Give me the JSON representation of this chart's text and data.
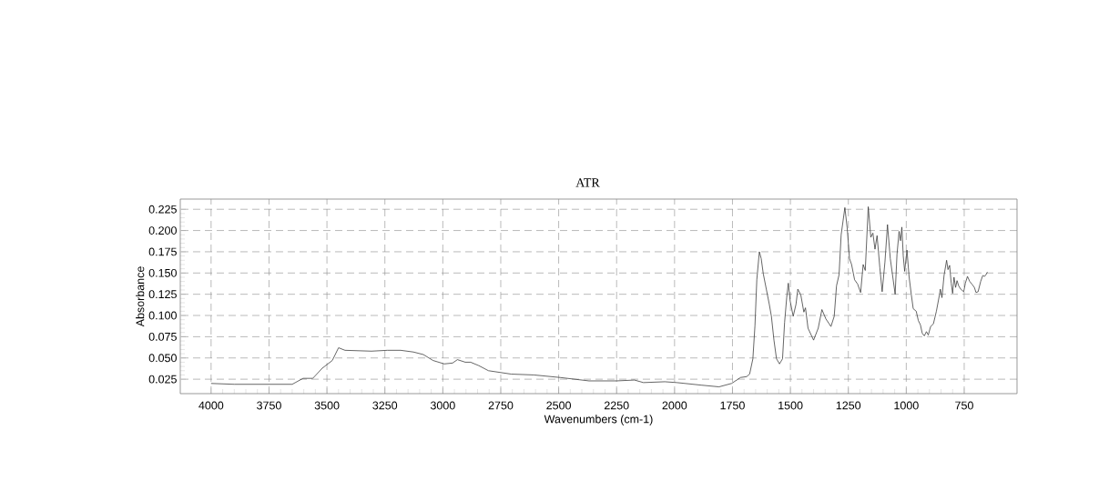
{
  "chart_data": {
    "type": "line",
    "title": "ATR",
    "xlabel": "Wavenumbers (cm-1)",
    "ylabel": "Absorbance",
    "xlim": [
      4133,
      522
    ],
    "xticks": [
      4000,
      3750,
      3500,
      3250,
      3000,
      2750,
      2500,
      2250,
      2000,
      1750,
      1500,
      1250,
      1000,
      750
    ],
    "ylim": [
      0.008,
      0.237
    ],
    "yticks": [
      0.025,
      {
        "value": 0.05,
        "label": "0.050"
      },
      0.075,
      {
        "value": 0.1,
        "label": "0.100"
      },
      0.125,
      {
        "value": 0.15,
        "label": "0.150"
      },
      0.175,
      {
        "value": 0.2,
        "label": "0.200"
      },
      0.225
    ],
    "grid": true,
    "line_style": "solid",
    "color": "#333333",
    "x": [
      4000,
      3900,
      3750,
      3650,
      3603,
      3561,
      3520,
      3477,
      3450,
      3422,
      3308,
      3239,
      3182,
      3127,
      3084,
      3042,
      2994,
      2958,
      2937,
      2903,
      2880,
      2845,
      2803,
      2705,
      2607,
      2494,
      2369,
      2250,
      2173,
      2134,
      2042,
      1990,
      1885,
      1808,
      1754,
      1715,
      1689,
      1676,
      1662,
      1653,
      1645,
      1634,
      1626,
      1617,
      1604,
      1591,
      1582,
      1571,
      1560,
      1547,
      1534,
      1525,
      1516,
      1509,
      1501,
      1488,
      1476,
      1468,
      1455,
      1442,
      1435,
      1424,
      1400,
      1380,
      1364,
      1347,
      1325,
      1311,
      1301,
      1290,
      1281,
      1265,
      1255,
      1245,
      1236,
      1223,
      1210,
      1197,
      1186,
      1177,
      1164,
      1153,
      1144,
      1135,
      1126,
      1114,
      1104,
      1092,
      1081,
      1069,
      1048,
      1040,
      1031,
      1025,
      1019,
      1013,
      1007,
      997,
      988,
      978,
      970,
      957,
      948,
      939,
      931,
      922,
      913,
      905,
      895,
      883,
      870,
      857,
      853,
      846,
      837,
      826,
      820,
      813,
      806,
      800,
      794,
      787,
      781,
      774,
      765,
      752,
      745,
      736,
      726,
      717,
      706,
      699,
      690,
      679,
      670,
      662,
      656,
      650
    ],
    "values": [
      0.02,
      0.019,
      0.019,
      0.019,
      0.026,
      0.026,
      0.038,
      0.047,
      0.062,
      0.059,
      0.058,
      0.059,
      0.059,
      0.057,
      0.054,
      0.047,
      0.043,
      0.044,
      0.048,
      0.045,
      0.045,
      0.041,
      0.035,
      0.031,
      0.03,
      0.027,
      0.023,
      0.023,
      0.024,
      0.021,
      0.022,
      0.021,
      0.018,
      0.016,
      0.02,
      0.027,
      0.028,
      0.031,
      0.049,
      0.088,
      0.142,
      0.175,
      0.167,
      0.149,
      0.131,
      0.113,
      0.099,
      0.071,
      0.049,
      0.043,
      0.049,
      0.092,
      0.121,
      0.138,
      0.117,
      0.099,
      0.113,
      0.131,
      0.124,
      0.104,
      0.109,
      0.085,
      0.071,
      0.085,
      0.107,
      0.096,
      0.087,
      0.099,
      0.135,
      0.148,
      0.195,
      0.227,
      0.203,
      0.167,
      0.16,
      0.142,
      0.137,
      0.127,
      0.16,
      0.153,
      0.228,
      0.192,
      0.197,
      0.178,
      0.194,
      0.156,
      0.128,
      0.163,
      0.207,
      0.167,
      0.125,
      0.172,
      0.199,
      0.188,
      0.204,
      0.17,
      0.152,
      0.177,
      0.146,
      0.124,
      0.108,
      0.105,
      0.094,
      0.089,
      0.079,
      0.076,
      0.081,
      0.077,
      0.087,
      0.09,
      0.105,
      0.124,
      0.131,
      0.121,
      0.147,
      0.165,
      0.154,
      0.159,
      0.138,
      0.126,
      0.145,
      0.133,
      0.141,
      0.135,
      0.131,
      0.128,
      0.138,
      0.146,
      0.14,
      0.137,
      0.133,
      0.127,
      0.128,
      0.14,
      0.147,
      0.146,
      0.148,
      0.151
    ]
  }
}
